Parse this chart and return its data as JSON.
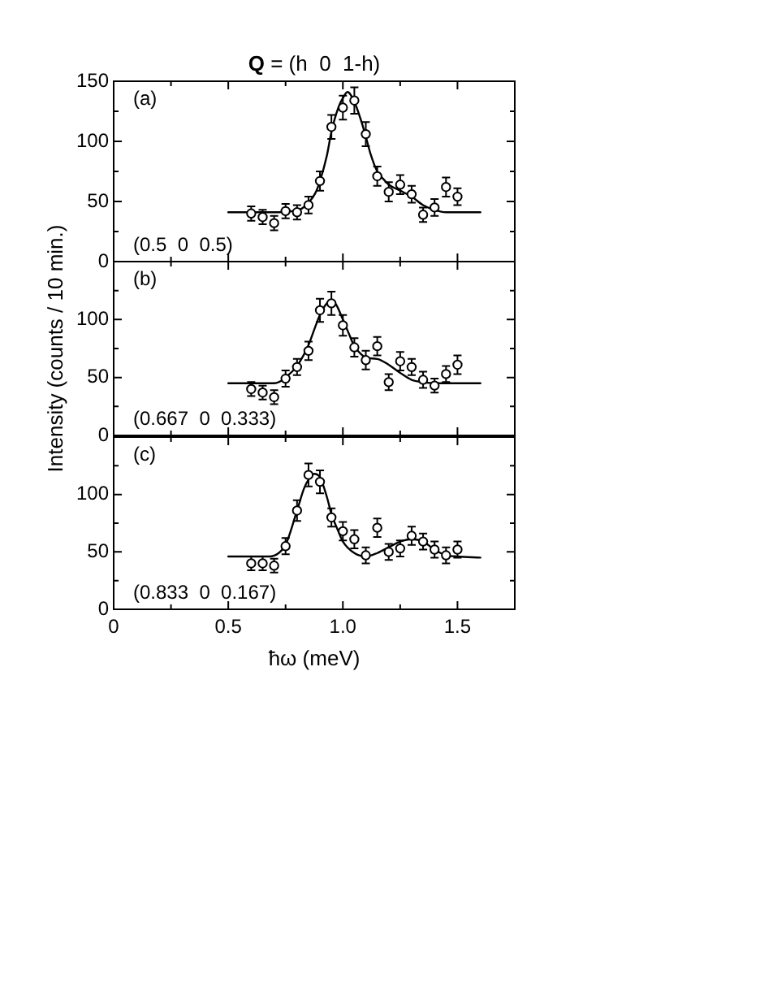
{
  "chart_data": [
    {
      "type": "scatter",
      "title": "Q = (h  0  1-h)",
      "annotations": [
        "(a)",
        "(0.5  0  0.5)"
      ],
      "xlim": [
        0,
        1.75
      ],
      "xticks": [
        0,
        {
          "value": 0.25,
          "label": null
        },
        0.5,
        {
          "value": 0.75,
          "label": null
        },
        1,
        {
          "value": 1.25,
          "label": null
        },
        1.5,
        {
          "value": 1.75,
          "label": null
        }
      ],
      "ylim": [
        0,
        150
      ],
      "yticks": [
        0,
        {
          "value": 25,
          "label": null
        },
        50,
        {
          "value": 75,
          "label": null
        },
        100,
        {
          "value": 125,
          "label": null
        },
        150
      ],
      "tick_labels": "y",
      "series": [
        {
          "marker": "circle",
          "color": "#000000",
          "x": [
            0.6,
            0.65,
            0.7,
            0.75,
            0.8,
            0.85,
            0.9,
            0.95,
            1.0,
            1.05,
            1.1,
            1.15,
            1.2,
            1.25,
            1.3,
            1.35,
            1.4,
            1.45,
            1.5
          ],
          "values": [
            40,
            37,
            32,
            42,
            41,
            47,
            67,
            112,
            128,
            134,
            106,
            71,
            58,
            64,
            56,
            39,
            45,
            62,
            54
          ],
          "errors": [
            6,
            6,
            6,
            6,
            6,
            7,
            8,
            10,
            10,
            11,
            10,
            8,
            8,
            8,
            7,
            6,
            7,
            8,
            7
          ]
        },
        {
          "type": "line",
          "marker": "none",
          "color": "#000000",
          "x": [
            0.5,
            0.7,
            0.78,
            0.82,
            0.85,
            0.88,
            0.9,
            0.93,
            0.95,
            0.98,
            1.0,
            1.02,
            1.05,
            1.08,
            1.1,
            1.12,
            1.15,
            1.18,
            1.2,
            1.25,
            1.3,
            1.35,
            1.4,
            1.45,
            1.6
          ],
          "values": [
            41,
            41,
            42,
            44,
            49,
            57,
            67,
            88,
            108,
            128,
            136,
            141,
            133,
            117,
            104,
            90,
            75,
            68,
            64,
            59,
            54,
            47,
            43,
            41,
            41
          ]
        }
      ]
    },
    {
      "type": "scatter",
      "ylabel": "Intensity (counts / 10 min.)",
      "annotations": [
        "(b)",
        "(0.667  0  0.333)"
      ],
      "xlim": [
        0,
        1.75
      ],
      "xticks": [
        0,
        {
          "value": 0.25,
          "label": null
        },
        0.5,
        {
          "value": 0.75,
          "label": null
        },
        1,
        {
          "value": 1.25,
          "label": null
        },
        1.5,
        {
          "value": 1.75,
          "label": null
        }
      ],
      "ylim": [
        0,
        150
      ],
      "yticks": [
        0,
        {
          "value": 25,
          "label": null
        },
        50,
        {
          "value": 75,
          "label": null
        },
        100,
        {
          "value": 125,
          "label": null
        },
        {
          "value": 150,
          "label": null
        }
      ],
      "tick_labels": "y",
      "series": [
        {
          "marker": "circle",
          "color": "#000000",
          "x": [
            0.6,
            0.65,
            0.7,
            0.75,
            0.8,
            0.85,
            0.9,
            0.95,
            1.0,
            1.05,
            1.1,
            1.15,
            1.2,
            1.25,
            1.3,
            1.35,
            1.4,
            1.45,
            1.5
          ],
          "values": [
            40,
            37,
            33,
            49,
            59,
            73,
            108,
            114,
            95,
            76,
            65,
            77,
            46,
            64,
            59,
            48,
            43,
            53,
            61
          ],
          "errors": [
            6,
            6,
            6,
            7,
            7,
            8,
            10,
            10,
            9,
            8,
            8,
            8,
            7,
            8,
            7,
            7,
            6,
            7,
            8
          ]
        },
        {
          "type": "line",
          "marker": "none",
          "color": "#000000",
          "x": [
            0.5,
            0.7,
            0.73,
            0.75,
            0.8,
            0.85,
            0.88,
            0.9,
            0.93,
            0.95,
            0.97,
            1.0,
            1.03,
            1.05,
            1.08,
            1.1,
            1.15,
            1.2,
            1.25,
            1.3,
            1.35,
            1.4,
            1.6
          ],
          "values": [
            45,
            45,
            47,
            50,
            60,
            78,
            94,
            104,
            114,
            116,
            113,
            100,
            86,
            77,
            70,
            67,
            66,
            61,
            54,
            48,
            46,
            45,
            45
          ]
        }
      ]
    },
    {
      "type": "scatter",
      "xlabel": "ħω (meV)",
      "annotations": [
        "(c)",
        "(0.833  0  0.167)"
      ],
      "xlim": [
        0,
        1.75
      ],
      "xticks": [
        0,
        {
          "value": 0.25,
          "label": null
        },
        0.5,
        {
          "value": 0.75,
          "label": null
        },
        {
          "value": 1,
          "label": "1.0"
        },
        {
          "value": 1.25,
          "label": null
        },
        1.5,
        {
          "value": 1.75,
          "label": null
        }
      ],
      "ylim": [
        0,
        150
      ],
      "yticks": [
        0,
        {
          "value": 25,
          "label": null
        },
        50,
        {
          "value": 75,
          "label": null
        },
        100,
        {
          "value": 125,
          "label": null
        },
        {
          "value": 150,
          "label": null
        }
      ],
      "series": [
        {
          "marker": "circle",
          "color": "#000000",
          "x": [
            0.6,
            0.65,
            0.7,
            0.75,
            0.8,
            0.85,
            0.9,
            0.95,
            1.0,
            1.05,
            1.1,
            1.15,
            1.2,
            1.25,
            1.3,
            1.35,
            1.4,
            1.45,
            1.5
          ],
          "values": [
            40,
            40,
            38,
            55,
            86,
            117,
            111,
            80,
            68,
            61,
            47,
            71,
            50,
            53,
            64,
            59,
            52,
            47,
            52
          ],
          "errors": [
            6,
            6,
            6,
            7,
            9,
            10,
            10,
            8,
            8,
            8,
            7,
            8,
            7,
            7,
            8,
            7,
            7,
            7,
            7
          ]
        },
        {
          "type": "line",
          "marker": "none",
          "color": "#000000",
          "x": [
            0.5,
            0.68,
            0.72,
            0.75,
            0.8,
            0.83,
            0.85,
            0.875,
            0.9,
            0.93,
            0.95,
            0.98,
            1.0,
            1.05,
            1.1,
            1.15,
            1.2,
            1.25,
            1.3,
            1.35,
            1.4,
            1.45,
            1.5,
            1.6
          ],
          "values": [
            46,
            46,
            49,
            56,
            86,
            105,
            113,
            118,
            115,
            98,
            83,
            68,
            59,
            49,
            46,
            49,
            54,
            59,
            61,
            59,
            52,
            47,
            46,
            45
          ]
        }
      ]
    }
  ]
}
